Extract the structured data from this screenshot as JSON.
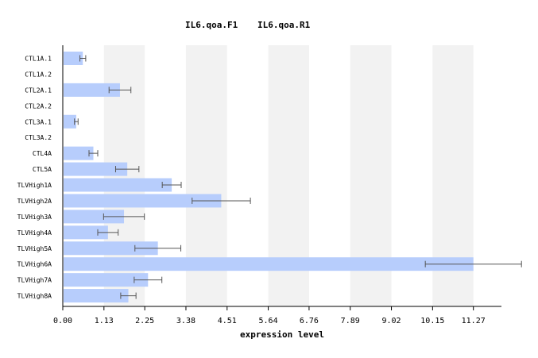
{
  "colors": {
    "bar": "#b7cdfc",
    "band": "#f2f2f2",
    "axis": "#000000",
    "errorbar": "#555555"
  },
  "chart_data": {
    "type": "bar",
    "orientation": "horizontal",
    "title_parts": [
      "IL6.qoa.F1",
      "IL6.qoa.R1"
    ],
    "xlabel": "expression level",
    "xlim": [
      0,
      12.04
    ],
    "xticks": [
      "0.00",
      "1.13",
      "2.25",
      "3.38",
      "4.51",
      "5.64",
      "6.76",
      "7.89",
      "9.02",
      "10.15",
      "11.27"
    ],
    "xtick_values": [
      0.0,
      1.13,
      2.25,
      3.38,
      4.51,
      5.64,
      6.76,
      7.89,
      9.02,
      10.15,
      11.27
    ],
    "categories": [
      "CTL1A.1",
      "CTL1A.2",
      "CTL2A.1",
      "CTL2A.2",
      "CTL3A.1",
      "CTL3A.2",
      "CTL4A",
      "CTL5A",
      "TLVHigh1A",
      "TLVHigh2A",
      "TLVHigh3A",
      "TLVHigh4A",
      "TLVHigh5A",
      "TLVHigh6A",
      "TLVHigh7A",
      "TLVHigh8A"
    ],
    "values": [
      0.55,
      null,
      1.57,
      null,
      0.37,
      null,
      0.84,
      1.77,
      2.99,
      4.35,
      1.68,
      1.24,
      2.61,
      11.27,
      2.34,
      1.8
    ],
    "errors": [
      0.08,
      null,
      0.3,
      null,
      0.05,
      null,
      0.12,
      0.32,
      0.26,
      0.8,
      0.56,
      0.28,
      0.63,
      1.32,
      0.38,
      0.21
    ]
  }
}
